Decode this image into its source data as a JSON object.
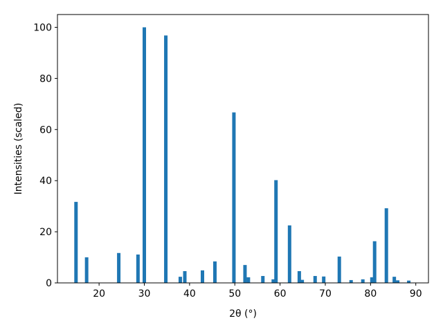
{
  "chart_data": {
    "type": "bar",
    "xlabel": "2θ (°)",
    "ylabel": "Intensities (scaled)",
    "color": "#1f77b4",
    "x": [
      14.9,
      17.25,
      24.35,
      28.6,
      30.0,
      34.75,
      37.95,
      38.95,
      42.85,
      45.6,
      49.8,
      52.25,
      53.0,
      56.2,
      58.5,
      59.1,
      62.1,
      64.25,
      64.9,
      67.75,
      69.65,
      73.1,
      75.7,
      78.3,
      80.3,
      80.9,
      83.5,
      85.25,
      86.0,
      88.45
    ],
    "values": [
      31.7,
      10.0,
      11.7,
      11.1,
      100,
      96.8,
      2.4,
      4.6,
      4.9,
      8.4,
      66.7,
      7.0,
      2.2,
      2.7,
      1.4,
      40.2,
      22.5,
      4.6,
      1.2,
      2.7,
      2.5,
      10.3,
      1.1,
      1.4,
      2.2,
      16.3,
      29.2,
      2.4,
      1.0,
      0.9
    ],
    "xlim": [
      10.8,
      92.8
    ],
    "xticks": [
      20,
      30,
      40,
      50,
      60,
      70,
      80,
      90
    ],
    "ylim": [
      0,
      105
    ],
    "yticks": [
      0,
      20,
      40,
      60,
      80,
      100
    ]
  }
}
